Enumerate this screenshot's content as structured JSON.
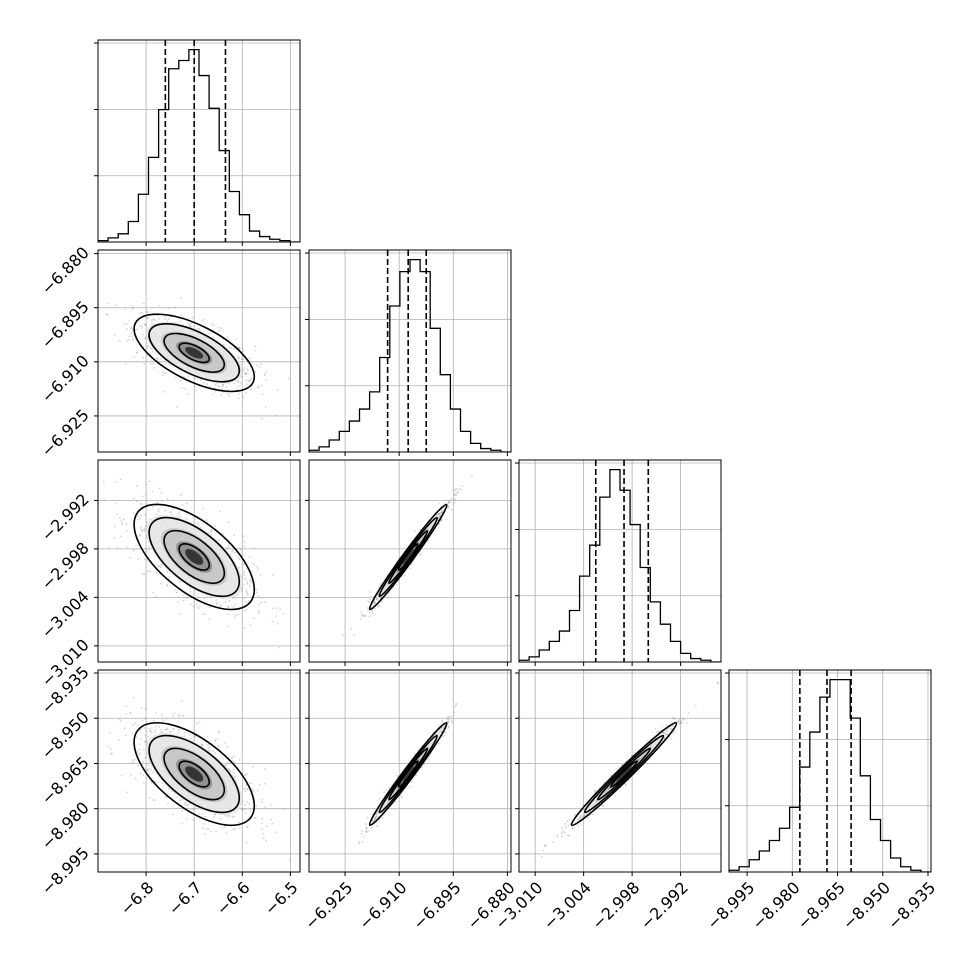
{
  "chart_data": {
    "type": "corner",
    "parameters": [
      {
        "index": 0,
        "range": [
          -6.9,
          -6.48
        ],
        "ticks": [
          -6.8,
          -6.7,
          -6.6,
          -6.5
        ],
        "tick_labels": [
          "−6.8",
          "−6.7",
          "−6.6",
          "−6.5"
        ],
        "quantiles": [
          -6.76,
          -6.7,
          -6.635
        ]
      },
      {
        "index": 1,
        "range": [
          -6.935,
          -6.879
        ],
        "ticks": [
          -6.925,
          -6.91,
          -6.895,
          -6.88
        ],
        "tick_labels": [
          "−6.925",
          "−6.910",
          "−6.895",
          "−6.880"
        ],
        "quantiles": [
          -6.9132,
          -6.9075,
          -6.9025
        ]
      },
      {
        "index": 2,
        "range": [
          -3.012,
          -2.987
        ],
        "ticks": [
          -3.01,
          -3.004,
          -2.998,
          -2.992
        ],
        "tick_labels": [
          "−3.010",
          "−3.004",
          "−2.998",
          "−2.992"
        ],
        "quantiles": [
          -3.0025,
          -2.999,
          -2.996
        ]
      },
      {
        "index": 3,
        "range": [
          -9.001,
          -8.934
        ],
        "ticks": [
          -8.995,
          -8.98,
          -8.965,
          -8.95,
          -8.935
        ],
        "tick_labels": [
          "−8.995",
          "−8.980",
          "−8.965",
          "−8.950",
          "−8.935"
        ],
        "quantiles": [
          -8.9775,
          -8.9685,
          -8.9605
        ]
      }
    ],
    "histograms": [
      [
        1,
        3,
        6,
        15,
        35,
        62,
        97,
        127,
        133,
        141,
        122,
        98,
        67,
        37,
        20,
        8,
        4,
        2,
        1,
        0
      ],
      [
        1,
        3,
        7,
        12,
        18,
        25,
        35,
        55,
        85,
        105,
        112,
        105,
        72,
        45,
        25,
        12,
        5,
        2,
        1,
        0
      ],
      [
        1,
        3,
        7,
        12,
        18,
        30,
        50,
        68,
        96,
        112,
        100,
        80,
        55,
        35,
        22,
        12,
        5,
        2,
        1,
        0
      ],
      [
        1,
        3,
        7,
        12,
        18,
        25,
        37,
        60,
        80,
        100,
        110,
        110,
        88,
        55,
        30,
        18,
        8,
        3,
        1,
        0
      ]
    ],
    "x_labels": [
      "",
      "",
      "",
      ""
    ],
    "y_labels": [
      "",
      "",
      "",
      ""
    ],
    "grid": true
  }
}
